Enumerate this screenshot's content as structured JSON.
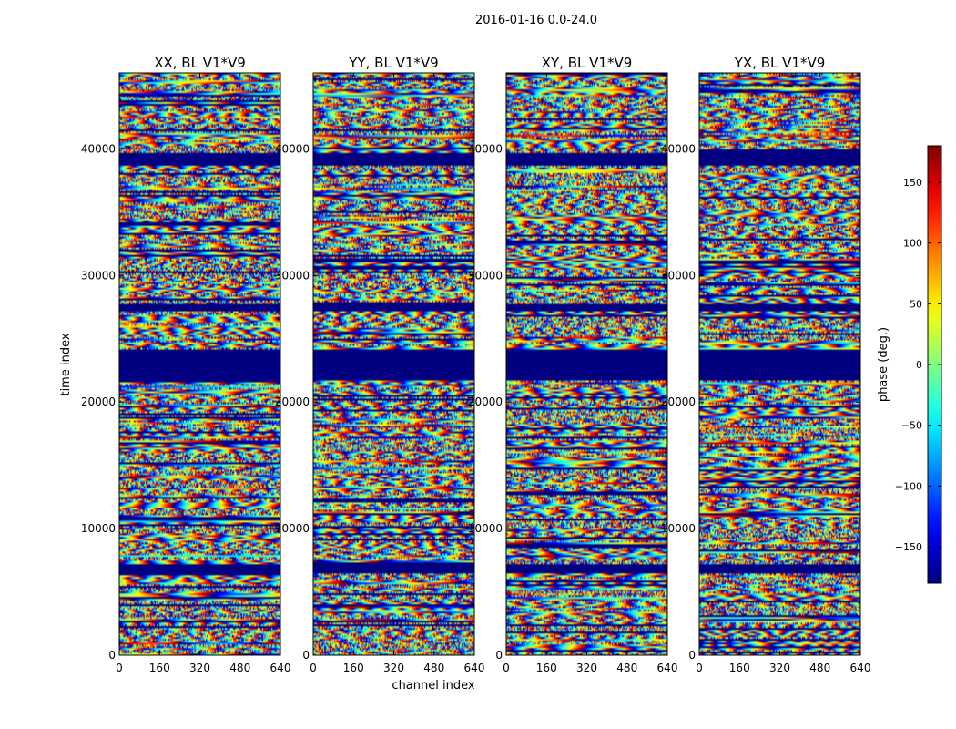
{
  "figure": {
    "suptitle": "2016-01-16 0.0-24.0"
  },
  "chart_data": {
    "type": "heatmap",
    "suptitle": "2016-01-16 0.0-24.0",
    "xlabel": "channel index",
    "ylabel": "time index",
    "xlim": [
      0,
      640
    ],
    "ylim": [
      0,
      46000
    ],
    "xticks": [
      "0",
      "160",
      "320",
      "480",
      "640"
    ],
    "xtick_values": [
      0,
      160,
      320,
      480,
      640
    ],
    "yticks": [
      "0",
      "10000",
      "20000",
      "30000",
      "40000"
    ],
    "ytick_values": [
      0,
      10000,
      20000,
      30000,
      40000
    ],
    "panels": [
      {
        "title": "XX, BL V1*V9",
        "seed": 11
      },
      {
        "title": "YY, BL V1*V9",
        "seed": 23
      },
      {
        "title": "XY, BL V1*V9",
        "seed": 37
      },
      {
        "title": "YX, BL V1*V9",
        "seed": 53
      }
    ],
    "colorbar": {
      "label": "phase (deg.)",
      "range": [
        -180,
        180
      ],
      "tick_values": [
        150,
        100,
        50,
        0,
        -50,
        -100,
        -150
      ],
      "tick_labels": [
        "150",
        "100",
        "50",
        "0",
        "−50",
        "−100",
        "−150"
      ],
      "colormap": "jet"
    },
    "flagged_time_bands": [
      [
        6500,
        7200
      ],
      [
        21800,
        24200
      ],
      [
        27200,
        27800
      ],
      [
        38800,
        39800
      ]
    ]
  }
}
